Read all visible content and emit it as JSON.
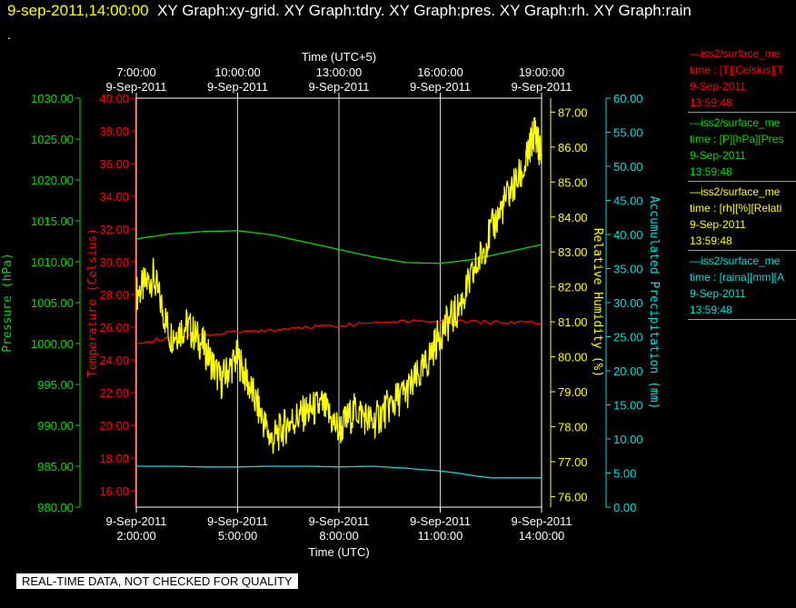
{
  "header": {
    "timestamp": "9-sep-2011,14:00:00",
    "graphs": "XY Graph:xy-grid.  XY Graph:tdry.  XY Graph:pres.  XY Graph:rh.  XY Graph:rain",
    "dot": "."
  },
  "footer": {
    "notice": "REAL-TIME DATA, NOT CHECKED FOR QUALITY"
  },
  "legend": [
    {
      "color": "#ff0000",
      "lines": [
        "—iss2/surface_me",
        "time : [T][Celsius][T",
        "9-Sep-2011",
        "13:59:48"
      ]
    },
    {
      "color": "#00dd00",
      "lines": [
        "—iss2/surface_me",
        "time : [P][hPa][Pres",
        "9-Sep-2011",
        "13:59:48"
      ]
    },
    {
      "color": "#ffff00",
      "lines": [
        "—iss2/surface_me",
        "time : [rh][%][Relati",
        "9-Sep-2011",
        "13:59:48"
      ]
    },
    {
      "color": "#00dddd",
      "lines": [
        "—iss2/surface_me",
        "time : [raina][mm][A",
        "9-Sep-2011",
        "13:59:48"
      ]
    }
  ],
  "chart_data": {
    "type": "line",
    "x_axis_bottom": {
      "label": "Time (UTC)",
      "ticks": [
        {
          "date": "9-Sep-2011",
          "time": "2:00:00"
        },
        {
          "date": "9-Sep-2011",
          "time": "5:00:00"
        },
        {
          "date": "9-Sep-2011",
          "time": "8:00:00"
        },
        {
          "date": "9-Sep-2011",
          "time": "11:00:00"
        },
        {
          "date": "9-Sep-2011",
          "time": "14:00:00"
        }
      ],
      "range_hours_utc": [
        2,
        14
      ]
    },
    "x_axis_top": {
      "label": "Time (UTC+5)",
      "ticks": [
        {
          "time": "7:00:00",
          "date": "9-Sep-2011"
        },
        {
          "time": "10:00:00",
          "date": "9-Sep-2011"
        },
        {
          "time": "13:00:00",
          "date": "9-Sep-2011"
        },
        {
          "time": "16:00:00",
          "date": "9-Sep-2011"
        },
        {
          "time": "19:00:00",
          "date": "9-Sep-2011"
        }
      ]
    },
    "y_axes": [
      {
        "id": "pressure",
        "label": "Pressure (hPa)",
        "color": "#00dd00",
        "range": [
          980,
          1030
        ],
        "ticks": [
          "980.00",
          "985.00",
          "990.00",
          "995.00",
          "1000.00",
          "1005.00",
          "1010.00",
          "1015.00",
          "1020.00",
          "1025.00",
          "1030.00"
        ]
      },
      {
        "id": "temperature",
        "label": "Temperature (Celsius)",
        "color": "#ff0000",
        "range": [
          15,
          40
        ],
        "ticks": [
          "16.00",
          "18.00",
          "20.00",
          "22.00",
          "24.00",
          "26.00",
          "28.00",
          "30.00",
          "32.00",
          "34.00",
          "36.00",
          "38.00",
          "40.00"
        ]
      },
      {
        "id": "rh",
        "label": "Relative Humidity (%)",
        "color": "#ffff00",
        "range": [
          75.7,
          87.4
        ],
        "ticks": [
          "76.00",
          "77.00",
          "78.00",
          "79.00",
          "80.00",
          "81.00",
          "82.00",
          "83.00",
          "84.00",
          "85.00",
          "86.00",
          "87.00"
        ]
      },
      {
        "id": "rain",
        "label": "Accumulated Precipitation (mm)",
        "color": "#00dddd",
        "range": [
          0,
          60
        ],
        "ticks": [
          "0.00",
          "5.00",
          "10.00",
          "15.00",
          "20.00",
          "25.00",
          "30.00",
          "35.00",
          "40.00",
          "45.00",
          "50.00",
          "55.00",
          "60.00"
        ]
      }
    ],
    "grid": "vertical",
    "series": [
      {
        "axis": "pressure",
        "color": "#00dd00",
        "x": [
          2,
          3,
          4,
          5,
          6,
          7,
          8,
          9,
          10,
          11,
          12,
          13,
          14
        ],
        "y": [
          1012.8,
          1013.4,
          1013.7,
          1013.8,
          1013.3,
          1012.4,
          1011.5,
          1010.6,
          1009.9,
          1009.8,
          1010.3,
          1011.2,
          1012.1
        ]
      },
      {
        "axis": "temperature",
        "color": "#ff0000",
        "x": [
          2,
          3,
          4,
          5,
          6,
          7,
          8,
          9,
          10,
          11,
          12,
          13,
          14
        ],
        "y": [
          25.1,
          25.3,
          25.5,
          25.7,
          25.8,
          26.0,
          26.1,
          26.3,
          26.4,
          26.4,
          26.3,
          26.3,
          26.3
        ]
      },
      {
        "axis": "rh",
        "color": "#ffff00",
        "x": [
          2,
          2.5,
          3,
          3.5,
          4,
          4.5,
          5,
          5.5,
          6,
          6.5,
          7,
          7.5,
          8,
          8.5,
          9,
          9.5,
          10,
          10.5,
          11,
          11.5,
          12,
          12.5,
          13,
          13.5,
          13.8,
          14
        ],
        "y": [
          81.8,
          82.3,
          80.6,
          80.9,
          80.3,
          79.3,
          80.0,
          78.8,
          77.6,
          78.1,
          78.4,
          78.6,
          77.9,
          78.5,
          78.1,
          78.6,
          79.0,
          79.6,
          80.7,
          81.3,
          82.4,
          83.6,
          84.6,
          85.4,
          86.5,
          85.7
        ]
      },
      {
        "axis": "rain",
        "color": "#00dddd",
        "x": [
          2,
          3,
          4,
          5,
          6,
          7,
          8,
          9,
          10,
          11,
          11.5,
          12,
          12.5,
          13,
          14
        ],
        "y": [
          6.0,
          6.0,
          5.9,
          5.9,
          6.0,
          6.0,
          5.9,
          6.0,
          5.7,
          5.3,
          5.0,
          4.6,
          4.3,
          4.3,
          4.3
        ]
      }
    ]
  }
}
